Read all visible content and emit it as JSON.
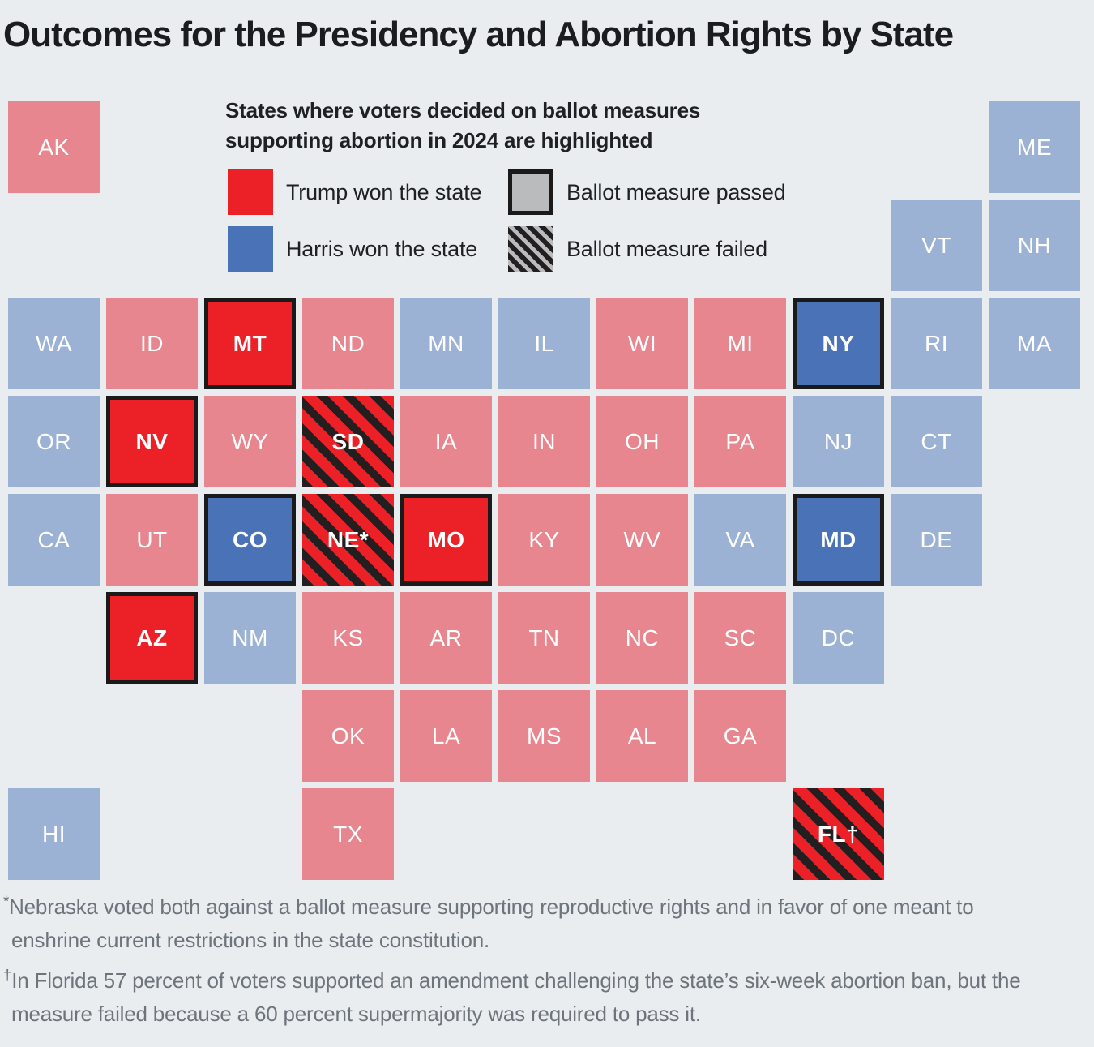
{
  "title": "Outcomes for the Presidency and Abortion Rights by State",
  "colors": {
    "background": "#E9EDF0",
    "trump_light": "#E8868F",
    "harris_light": "#9CB2D5",
    "trump_highlight": "#EC2127",
    "harris_highlight": "#4A73B7",
    "highlight_border": "#1A1A1A",
    "hatch_dark": "#231F20",
    "legend_gray": "#B9BBBD",
    "title_text": "#1B1C1E",
    "footnote_text": "#6D747B"
  },
  "legend": {
    "heading_line1": "States where voters decided on ballot measures",
    "heading_line2": "supporting abortion in 2024 are highlighted",
    "items": [
      {
        "swatch": "trump",
        "label": "Trump won the state"
      },
      {
        "swatch": "harris",
        "label": "Harris won the state"
      },
      {
        "swatch": "passed",
        "label": "Ballot measure passed"
      },
      {
        "swatch": "failed",
        "label": "Ballot measure failed"
      }
    ]
  },
  "chart_data": {
    "type": "heatmap",
    "subtype": "us-tile-grid-map",
    "title": "Outcomes for the Presidency and Abortion Rights by State",
    "legend_position": "top-left",
    "states": [
      {
        "abbr": "AK",
        "label": "AK",
        "col": 1,
        "row": 1,
        "president": "Trump",
        "ballot_measure": null,
        "fill": "trump"
      },
      {
        "abbr": "ME",
        "label": "ME",
        "col": 11,
        "row": 1,
        "president": "Harris",
        "ballot_measure": null,
        "fill": "harris"
      },
      {
        "abbr": "VT",
        "label": "VT",
        "col": 10,
        "row": 2,
        "president": "Harris",
        "ballot_measure": null,
        "fill": "harris"
      },
      {
        "abbr": "NH",
        "label": "NH",
        "col": 11,
        "row": 2,
        "president": "Harris",
        "ballot_measure": null,
        "fill": "harris"
      },
      {
        "abbr": "WA",
        "label": "WA",
        "col": 1,
        "row": 3,
        "president": "Harris",
        "ballot_measure": null,
        "fill": "harris"
      },
      {
        "abbr": "ID",
        "label": "ID",
        "col": 2,
        "row": 3,
        "president": "Trump",
        "ballot_measure": null,
        "fill": "trump"
      },
      {
        "abbr": "MT",
        "label": "MT",
        "col": 3,
        "row": 3,
        "president": "Trump",
        "ballot_measure": "passed",
        "fill": "trump-passed"
      },
      {
        "abbr": "ND",
        "label": "ND",
        "col": 4,
        "row": 3,
        "president": "Trump",
        "ballot_measure": null,
        "fill": "trump"
      },
      {
        "abbr": "MN",
        "label": "MN",
        "col": 5,
        "row": 3,
        "president": "Harris",
        "ballot_measure": null,
        "fill": "harris"
      },
      {
        "abbr": "IL",
        "label": "IL",
        "col": 6,
        "row": 3,
        "president": "Harris",
        "ballot_measure": null,
        "fill": "harris"
      },
      {
        "abbr": "WI",
        "label": "WI",
        "col": 7,
        "row": 3,
        "president": "Trump",
        "ballot_measure": null,
        "fill": "trump"
      },
      {
        "abbr": "MI",
        "label": "MI",
        "col": 8,
        "row": 3,
        "president": "Trump",
        "ballot_measure": null,
        "fill": "trump"
      },
      {
        "abbr": "NY",
        "label": "NY",
        "col": 9,
        "row": 3,
        "president": "Harris",
        "ballot_measure": "passed",
        "fill": "harris-passed"
      },
      {
        "abbr": "RI",
        "label": "RI",
        "col": 10,
        "row": 3,
        "president": "Harris",
        "ballot_measure": null,
        "fill": "harris"
      },
      {
        "abbr": "MA",
        "label": "MA",
        "col": 11,
        "row": 3,
        "president": "Harris",
        "ballot_measure": null,
        "fill": "harris"
      },
      {
        "abbr": "OR",
        "label": "OR",
        "col": 1,
        "row": 4,
        "president": "Harris",
        "ballot_measure": null,
        "fill": "harris"
      },
      {
        "abbr": "NV",
        "label": "NV",
        "col": 2,
        "row": 4,
        "president": "Trump",
        "ballot_measure": "passed",
        "fill": "trump-passed"
      },
      {
        "abbr": "WY",
        "label": "WY",
        "col": 3,
        "row": 4,
        "president": "Trump",
        "ballot_measure": null,
        "fill": "trump"
      },
      {
        "abbr": "SD",
        "label": "SD",
        "col": 4,
        "row": 4,
        "president": "Trump",
        "ballot_measure": "failed",
        "fill": "failed"
      },
      {
        "abbr": "IA",
        "label": "IA",
        "col": 5,
        "row": 4,
        "president": "Trump",
        "ballot_measure": null,
        "fill": "trump"
      },
      {
        "abbr": "IN",
        "label": "IN",
        "col": 6,
        "row": 4,
        "president": "Trump",
        "ballot_measure": null,
        "fill": "trump"
      },
      {
        "abbr": "OH",
        "label": "OH",
        "col": 7,
        "row": 4,
        "president": "Trump",
        "ballot_measure": null,
        "fill": "trump"
      },
      {
        "abbr": "PA",
        "label": "PA",
        "col": 8,
        "row": 4,
        "president": "Trump",
        "ballot_measure": null,
        "fill": "trump"
      },
      {
        "abbr": "NJ",
        "label": "NJ",
        "col": 9,
        "row": 4,
        "president": "Harris",
        "ballot_measure": null,
        "fill": "harris"
      },
      {
        "abbr": "CT",
        "label": "CT",
        "col": 10,
        "row": 4,
        "president": "Harris",
        "ballot_measure": null,
        "fill": "harris"
      },
      {
        "abbr": "CA",
        "label": "CA",
        "col": 1,
        "row": 5,
        "president": "Harris",
        "ballot_measure": null,
        "fill": "harris"
      },
      {
        "abbr": "UT",
        "label": "UT",
        "col": 2,
        "row": 5,
        "president": "Trump",
        "ballot_measure": null,
        "fill": "trump"
      },
      {
        "abbr": "CO",
        "label": "CO",
        "col": 3,
        "row": 5,
        "president": "Harris",
        "ballot_measure": "passed",
        "fill": "harris-passed"
      },
      {
        "abbr": "NE",
        "label": "NE*",
        "col": 4,
        "row": 5,
        "president": "Trump",
        "ballot_measure": "failed",
        "fill": "failed"
      },
      {
        "abbr": "MO",
        "label": "MO",
        "col": 5,
        "row": 5,
        "president": "Trump",
        "ballot_measure": "passed",
        "fill": "trump-passed"
      },
      {
        "abbr": "KY",
        "label": "KY",
        "col": 6,
        "row": 5,
        "president": "Trump",
        "ballot_measure": null,
        "fill": "trump"
      },
      {
        "abbr": "WV",
        "label": "WV",
        "col": 7,
        "row": 5,
        "president": "Trump",
        "ballot_measure": null,
        "fill": "trump"
      },
      {
        "abbr": "VA",
        "label": "VA",
        "col": 8,
        "row": 5,
        "president": "Harris",
        "ballot_measure": null,
        "fill": "harris"
      },
      {
        "abbr": "MD",
        "label": "MD",
        "col": 9,
        "row": 5,
        "president": "Harris",
        "ballot_measure": "passed",
        "fill": "harris-passed"
      },
      {
        "abbr": "DE",
        "label": "DE",
        "col": 10,
        "row": 5,
        "president": "Harris",
        "ballot_measure": null,
        "fill": "harris"
      },
      {
        "abbr": "AZ",
        "label": "AZ",
        "col": 2,
        "row": 6,
        "president": "Trump",
        "ballot_measure": "passed",
        "fill": "trump-passed"
      },
      {
        "abbr": "NM",
        "label": "NM",
        "col": 3,
        "row": 6,
        "president": "Harris",
        "ballot_measure": null,
        "fill": "harris"
      },
      {
        "abbr": "KS",
        "label": "KS",
        "col": 4,
        "row": 6,
        "president": "Trump",
        "ballot_measure": null,
        "fill": "trump"
      },
      {
        "abbr": "AR",
        "label": "AR",
        "col": 5,
        "row": 6,
        "president": "Trump",
        "ballot_measure": null,
        "fill": "trump"
      },
      {
        "abbr": "TN",
        "label": "TN",
        "col": 6,
        "row": 6,
        "president": "Trump",
        "ballot_measure": null,
        "fill": "trump"
      },
      {
        "abbr": "NC",
        "label": "NC",
        "col": 7,
        "row": 6,
        "president": "Trump",
        "ballot_measure": null,
        "fill": "trump"
      },
      {
        "abbr": "SC",
        "label": "SC",
        "col": 8,
        "row": 6,
        "president": "Trump",
        "ballot_measure": null,
        "fill": "trump"
      },
      {
        "abbr": "DC",
        "label": "DC",
        "col": 9,
        "row": 6,
        "president": "Harris",
        "ballot_measure": null,
        "fill": "harris"
      },
      {
        "abbr": "OK",
        "label": "OK",
        "col": 4,
        "row": 7,
        "president": "Trump",
        "ballot_measure": null,
        "fill": "trump"
      },
      {
        "abbr": "LA",
        "label": "LA",
        "col": 5,
        "row": 7,
        "president": "Trump",
        "ballot_measure": null,
        "fill": "trump"
      },
      {
        "abbr": "MS",
        "label": "MS",
        "col": 6,
        "row": 7,
        "president": "Trump",
        "ballot_measure": null,
        "fill": "trump"
      },
      {
        "abbr": "AL",
        "label": "AL",
        "col": 7,
        "row": 7,
        "president": "Trump",
        "ballot_measure": null,
        "fill": "trump"
      },
      {
        "abbr": "GA",
        "label": "GA",
        "col": 8,
        "row": 7,
        "president": "Trump",
        "ballot_measure": null,
        "fill": "trump"
      },
      {
        "abbr": "HI",
        "label": "HI",
        "col": 1,
        "row": 8,
        "president": "Harris",
        "ballot_measure": null,
        "fill": "harris"
      },
      {
        "abbr": "TX",
        "label": "TX",
        "col": 4,
        "row": 8,
        "president": "Trump",
        "ballot_measure": null,
        "fill": "trump"
      },
      {
        "abbr": "FL",
        "label": "FL†",
        "col": 9,
        "row": 8,
        "president": "Trump",
        "ballot_measure": "failed",
        "fill": "failed"
      }
    ]
  },
  "footnotes": [
    {
      "marker": "*",
      "lines": [
        "Nebraska voted both against a ballot measure supporting reproductive rights and in favor of one meant to",
        "enshrine current restrictions in the state constitution."
      ]
    },
    {
      "marker": "†",
      "lines": [
        "In Florida 57 percent of voters supported an amendment challenging the state’s six-week abortion ban, but the",
        "measure failed because a 60 percent supermajority was required to pass it."
      ]
    }
  ]
}
